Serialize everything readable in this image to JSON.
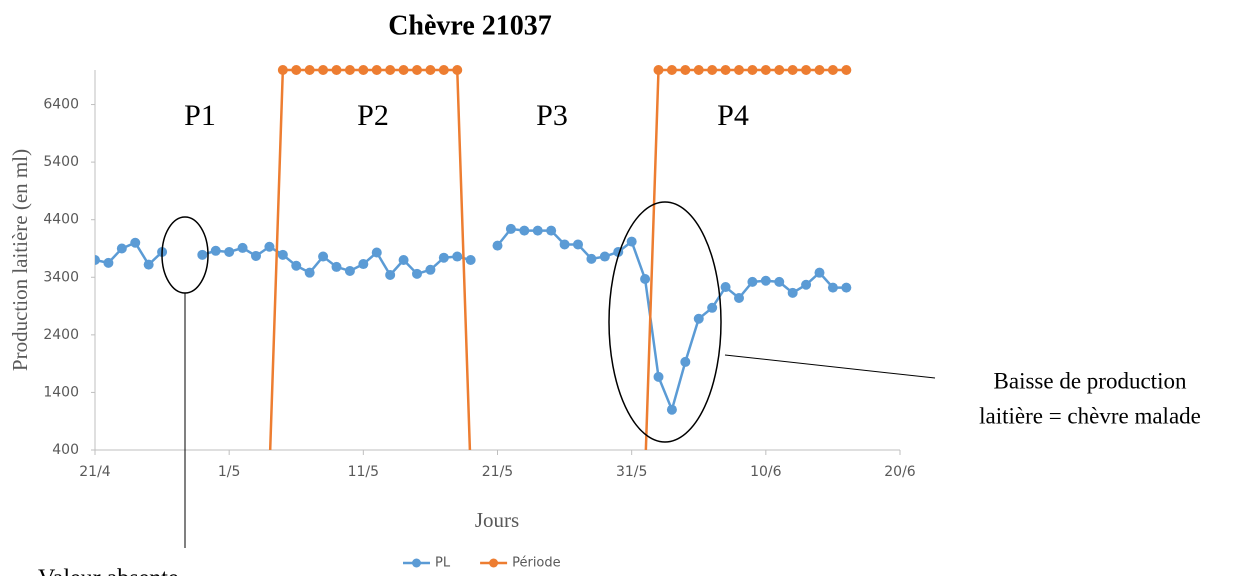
{
  "chart_data": {
    "type": "line",
    "title": "Chèvre 21037",
    "x_label": "Jours",
    "y_label": "Production laitière (en ml)",
    "x": [
      "21/4",
      "22/4",
      "23/4",
      "24/4",
      "25/4",
      "26/4",
      "27/4",
      "28/4",
      "29/4",
      "30/4",
      "1/5",
      "2/5",
      "3/5",
      "4/5",
      "5/5",
      "6/5",
      "7/5",
      "8/5",
      "9/5",
      "10/5",
      "11/5",
      "12/5",
      "13/5",
      "14/5",
      "15/5",
      "16/5",
      "17/5",
      "18/5",
      "19/5",
      "20/5",
      "21/5",
      "22/5",
      "23/5",
      "24/5",
      "25/5",
      "26/5",
      "27/5",
      "28/5",
      "29/5",
      "30/5",
      "31/5",
      "1/6",
      "2/6",
      "3/6",
      "4/6",
      "5/6",
      "6/6",
      "7/6",
      "8/6",
      "9/6",
      "10/6",
      "11/6",
      "12/6",
      "13/6",
      "14/6",
      "15/6",
      "16/6"
    ],
    "series": [
      {
        "name": "PL",
        "color": "#5b9bd5",
        "values": [
          3700,
          3650,
          3900,
          4000,
          3620,
          3840,
          null,
          null,
          3790,
          3860,
          3840,
          3910,
          3770,
          3930,
          3790,
          3600,
          3480,
          3760,
          3580,
          3510,
          3630,
          3830,
          3440,
          3700,
          3460,
          3530,
          3740,
          3760,
          3700,
          null,
          3950,
          4240,
          4210,
          4210,
          4210,
          3970,
          3970,
          3720,
          3760,
          3840,
          4020,
          3370,
          1670,
          1100,
          1930,
          2680,
          2870,
          3230,
          3040,
          3320,
          3340,
          3320,
          3130,
          3270,
          3480,
          3220,
          3220
        ]
      },
      {
        "name": "Période",
        "color": "#ed7d31",
        "values": [
          null,
          null,
          null,
          null,
          null,
          null,
          null,
          null,
          null,
          null,
          null,
          null,
          null,
          0,
          7000,
          7000,
          7000,
          7000,
          7000,
          7000,
          7000,
          7000,
          7000,
          7000,
          7000,
          7000,
          7000,
          7000,
          0,
          null,
          null,
          null,
          null,
          null,
          null,
          null,
          null,
          null,
          null,
          null,
          null,
          0,
          7000,
          7000,
          7000,
          7000,
          7000,
          7000,
          7000,
          7000,
          7000,
          7000,
          7000,
          7000,
          7000,
          7000,
          7000
        ]
      }
    ],
    "xlim": [
      "21/4",
      "20/6"
    ],
    "xticks": [
      "21/4",
      "1/5",
      "11/5",
      "21/5",
      "31/5",
      "10/6",
      "20/6"
    ],
    "ylim": [
      400,
      7000
    ],
    "yticks": [
      400,
      1400,
      2400,
      3400,
      4400,
      5400,
      6400
    ],
    "grid": false,
    "legend": "bottom",
    "annotations": [
      "P1",
      "P2",
      "P3",
      "P4",
      "Baisse de production",
      "laitière = chèvre malade",
      "Valeur absente"
    ]
  }
}
